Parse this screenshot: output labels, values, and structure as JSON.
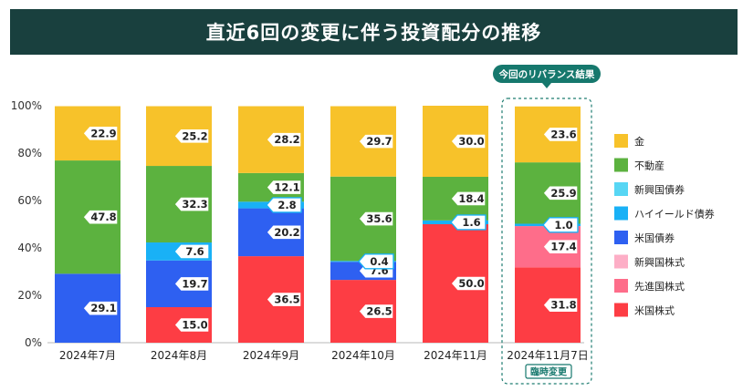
{
  "chart_data": {
    "type": "bar",
    "stacked": true,
    "title": "直近6回の変更に伴う投資配分の推移",
    "callout": "今回のリバランス結果",
    "badge": "臨時変更",
    "yticks": [
      "0%",
      "20%",
      "40%",
      "60%",
      "80%",
      "100%"
    ],
    "ylim": [
      0,
      100
    ],
    "categories": [
      "2024年7月",
      "2024年8月",
      "2024年9月",
      "2024年10月",
      "2024年11月",
      "2024年11月7日"
    ],
    "series": [
      {
        "name": "米国株式",
        "color": "#fd3d44",
        "values": [
          0,
          15.0,
          36.5,
          26.5,
          50.0,
          31.8
        ],
        "labels": [
          null,
          "15.0",
          "36.5",
          "26.5",
          "50.0",
          "31.8"
        ]
      },
      {
        "name": "先進国株式",
        "color": "#fe6d8a",
        "values": [
          0,
          0,
          0,
          0,
          0,
          17.4
        ],
        "labels": [
          null,
          null,
          null,
          null,
          null,
          "17.4"
        ]
      },
      {
        "name": "新興国株式",
        "color": "#fdaec6",
        "values": [
          0,
          0,
          0,
          0,
          0,
          0
        ],
        "labels": [
          null,
          null,
          null,
          null,
          null,
          null
        ]
      },
      {
        "name": "米国債券",
        "color": "#2e60f1",
        "values": [
          29.1,
          19.7,
          20.2,
          7.6,
          0,
          0
        ],
        "labels": [
          "29.1",
          "19.7",
          "20.2",
          "7.6",
          null,
          null
        ]
      },
      {
        "name": "ハイイールド債券",
        "color": "#19b1f6",
        "values": [
          0,
          7.6,
          2.8,
          0.4,
          1.6,
          1.0
        ],
        "labels": [
          null,
          "7.6",
          "2.8",
          "0.4",
          "1.6",
          "1.0"
        ]
      },
      {
        "name": "新興国債券",
        "color": "#57d6f4",
        "values": [
          0,
          0,
          0,
          0,
          0,
          0
        ],
        "labels": [
          null,
          null,
          null,
          null,
          null,
          null
        ]
      },
      {
        "name": "不動産",
        "color": "#5cb23f",
        "values": [
          47.8,
          32.3,
          12.1,
          35.6,
          18.4,
          25.9
        ],
        "labels": [
          "47.8",
          "32.3",
          "12.1",
          "35.6",
          "18.4",
          "25.9"
        ]
      },
      {
        "name": "金",
        "color": "#f7c22a",
        "values": [
          22.9,
          25.2,
          28.2,
          29.7,
          30.0,
          23.6
        ],
        "labels": [
          "22.9",
          "25.2",
          "28.2",
          "29.7",
          "30.0",
          "23.6"
        ]
      }
    ],
    "legend": [
      {
        "name": "金",
        "color": "#f7c22a"
      },
      {
        "name": "不動産",
        "color": "#5cb23f"
      },
      {
        "name": "新興国債券",
        "color": "#57d6f4"
      },
      {
        "name": "ハイイールド債券",
        "color": "#19b1f6"
      },
      {
        "name": "米国債券",
        "color": "#2e60f1"
      },
      {
        "name": "新興国株式",
        "color": "#fdaec6"
      },
      {
        "name": "先進国株式",
        "color": "#fe6d8a"
      },
      {
        "name": "米国株式",
        "color": "#fd3d44"
      }
    ],
    "legend_position": "right"
  }
}
